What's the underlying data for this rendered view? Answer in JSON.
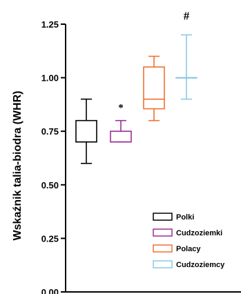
{
  "chart_data": {
    "type": "boxplot",
    "title": "",
    "xlabel": "",
    "ylabel": "Wskaźnik talia-biodra (WHR)",
    "ylim": [
      0.0,
      1.25
    ],
    "yticks": [
      "0.00",
      "0.25",
      "0.50",
      "0.75",
      "1.00",
      "1.25"
    ],
    "legend_position": "bottom-right",
    "series": [
      {
        "name": "Polki",
        "color": "#000000",
        "min": 0.6,
        "q1": 0.7,
        "median": 0.7,
        "q3": 0.8,
        "max": 0.9,
        "annotation": ""
      },
      {
        "name": "Cudzoziemki",
        "color": "#9b2d96",
        "min": 0.7,
        "q1": 0.7,
        "median": 0.7,
        "q3": 0.75,
        "max": 0.8,
        "annotation": "*"
      },
      {
        "name": "Polacy",
        "color": "#f07030",
        "min": 0.8,
        "q1": 0.855,
        "median": 0.9,
        "q3": 1.05,
        "max": 1.1,
        "annotation": ""
      },
      {
        "name": "Cudzoziemcy",
        "color": "#8cc8e6",
        "min": 0.9,
        "q1": 1.0,
        "median": 1.0,
        "q3": 1.0,
        "max": 1.2,
        "annotation": "#"
      }
    ]
  }
}
